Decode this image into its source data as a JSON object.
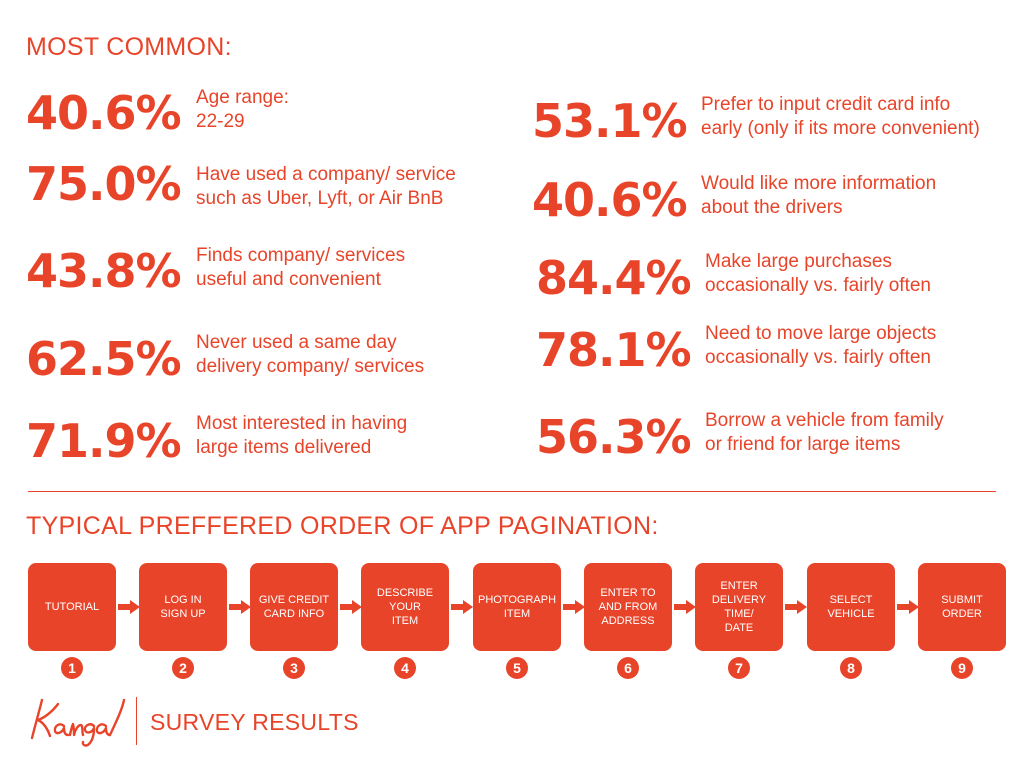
{
  "header": {
    "title": "MOST COMMON:"
  },
  "stats_left": [
    {
      "percent": "40.6%",
      "line1": "Age range:",
      "line2": "22-29"
    },
    {
      "percent": "75.0%",
      "line1": "Have used a company/ service",
      "line2": "such as Uber, Lyft, or Air BnB"
    },
    {
      "percent": "43.8%",
      "line1": "Finds company/ services",
      "line2": "useful and convenient"
    },
    {
      "percent": "62.5%",
      "line1": "Never used a same day",
      "line2": "delivery company/ services"
    },
    {
      "percent": "71.9%",
      "line1": "Most interested in having",
      "line2": "large items delivered"
    }
  ],
  "stats_right": [
    {
      "percent": "53.1%",
      "line1": "Prefer to input credit card info",
      "line2": "early (only if its more convenient)"
    },
    {
      "percent": "40.6%",
      "line1": "Would like more information",
      "line2": "about the drivers"
    },
    {
      "percent": "84.4%",
      "line1": "Make large purchases",
      "line2": "occasionally vs. fairly often"
    },
    {
      "percent": "78.1%",
      "line1": "Need to move large objects",
      "line2": "occasionally vs. fairly often"
    },
    {
      "percent": "56.3%",
      "line1": "Borrow a vehicle from family",
      "line2": "or friend for large items"
    }
  ],
  "section2": {
    "title": "TYPICAL PREFFERED ORDER OF APP PAGINATION:"
  },
  "steps": [
    {
      "label": "TUTORIAL",
      "number": "1"
    },
    {
      "label": "LOG IN\nSIGN UP",
      "number": "2"
    },
    {
      "label": "GIVE CREDIT\nCARD INFO",
      "number": "3"
    },
    {
      "label": "DESCRIBE\nYOUR\nITEM",
      "number": "4"
    },
    {
      "label": "PHOTOGRAPH\nITEM",
      "number": "5"
    },
    {
      "label": "ENTER TO\nAND FROM\nADDRESS",
      "number": "6"
    },
    {
      "label": "ENTER\nDELIVERY\nTIME/\nDATE",
      "number": "7"
    },
    {
      "label": "SELECT\nVEHICLE",
      "number": "8"
    },
    {
      "label": "SUBMIT\nORDER",
      "number": "9"
    }
  ],
  "footer": {
    "logo_text": "Kanga",
    "title": "SURVEY RESULTS"
  },
  "colors": {
    "accent": "#e8442a",
    "text_on_accent": "#ffffff"
  },
  "icons": {
    "arrow": "arrow-right-icon"
  }
}
